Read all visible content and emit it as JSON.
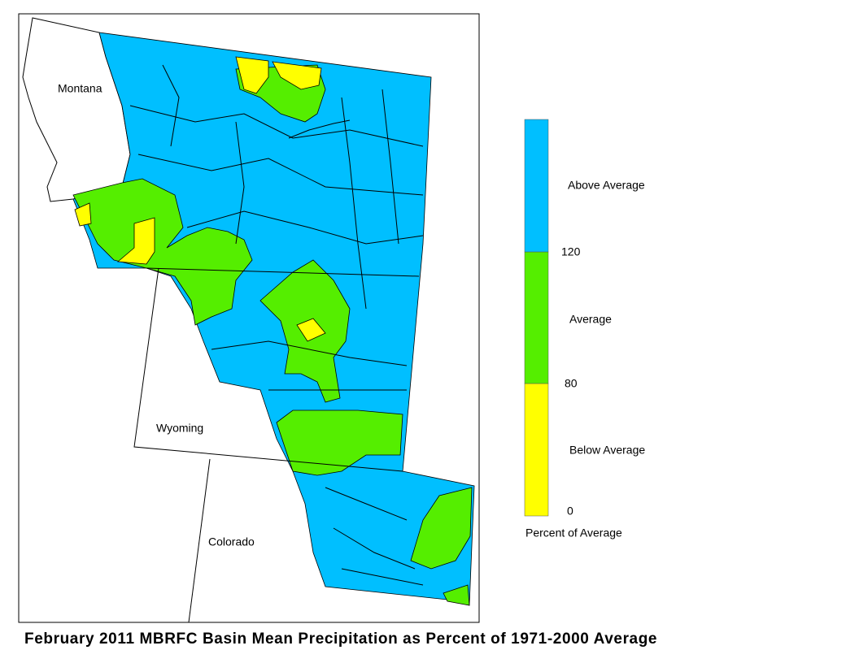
{
  "title": "February 2011 MBRFC Basin Mean Precipitation as Percent of 1971-2000 Average",
  "map": {
    "state_labels": [
      "Montana",
      "Wyoming",
      "Colorado"
    ]
  },
  "legend": {
    "bands": [
      {
        "label": "Above Average",
        "color": "#00bfff"
      },
      {
        "label": "Average",
        "color": "#55ee00"
      },
      {
        "label": "Below Average",
        "color": "#ffff00"
      }
    ],
    "ticks": [
      120,
      80,
      0
    ],
    "caption": "Percent of Average"
  }
}
